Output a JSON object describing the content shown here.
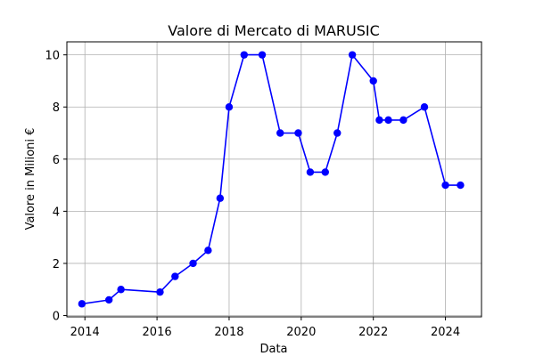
{
  "chart_data": {
    "type": "line",
    "title": "Valore di Mercato di MARUSIC",
    "xlabel": "Data",
    "ylabel": "Valore in Milioni €",
    "x_ticks": [
      2014,
      2016,
      2018,
      2020,
      2022,
      2024
    ],
    "y_ticks": [
      0,
      2,
      4,
      6,
      8,
      10
    ],
    "xlim": [
      2013.5,
      2025.0
    ],
    "ylim": [
      -0.05,
      10.5
    ],
    "grid": true,
    "line_color": "#0000ff",
    "marker": "circle",
    "series": [
      {
        "x": [
          "2013-12",
          "2014-09",
          "2015-01",
          "2016-02",
          "2016-07",
          "2017-01",
          "2017-06",
          "2017-10",
          "2018-01",
          "2018-06",
          "2018-12",
          "2019-06",
          "2019-12",
          "2020-04",
          "2020-09",
          "2021-01",
          "2021-06",
          "2022-01",
          "2022-03",
          "2022-06",
          "2022-11",
          "2023-06",
          "2024-01",
          "2024-06"
        ],
        "values": [
          0.45,
          0.6,
          1.0,
          0.9,
          1.5,
          2.0,
          2.5,
          4.5,
          8.0,
          10.0,
          10.0,
          7.0,
          7.0,
          5.5,
          5.5,
          7.0,
          10.0,
          9.0,
          7.5,
          7.5,
          7.5,
          8.0,
          5.0,
          5.0
        ]
      }
    ]
  }
}
